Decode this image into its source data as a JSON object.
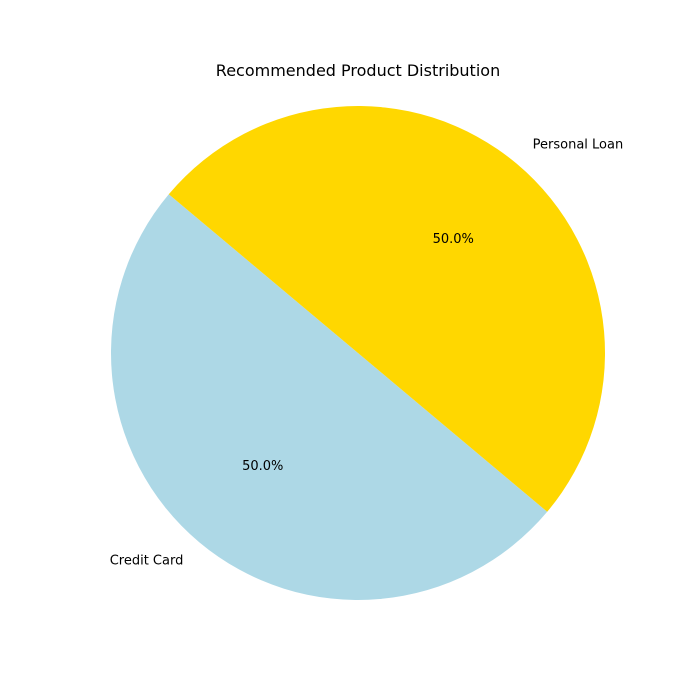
{
  "chart_data": {
    "type": "pie",
    "title": "Recommended Product Distribution",
    "slices": [
      {
        "label": "Credit Card",
        "value": 50.0,
        "pct_label": "50.0%",
        "color": "#add8e6"
      },
      {
        "label": "Personal Loan",
        "value": 50.0,
        "pct_label": "50.0%",
        "color": "#ffd700"
      }
    ],
    "start_angle_deg": 140,
    "legend": "none"
  }
}
